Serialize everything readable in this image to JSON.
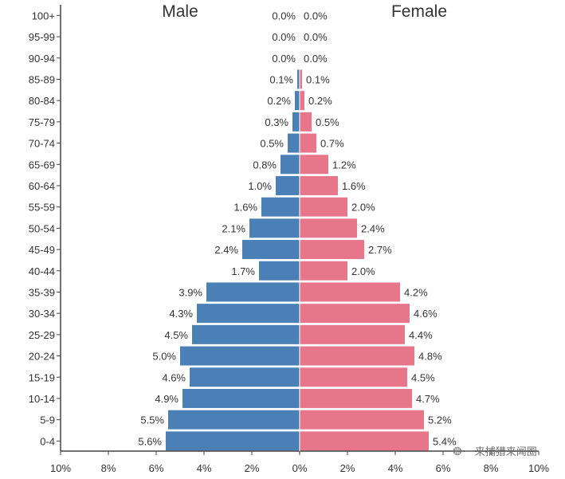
{
  "chart_data": {
    "type": "bar",
    "orientation": "horizontal-population-pyramid",
    "title_left": "Male",
    "title_right": "Female",
    "categories": [
      "0-4",
      "5-9",
      "10-14",
      "15-19",
      "20-24",
      "25-29",
      "30-34",
      "35-39",
      "40-44",
      "45-49",
      "50-54",
      "55-59",
      "60-64",
      "65-69",
      "70-74",
      "75-79",
      "80-84",
      "85-89",
      "90-94",
      "95-99",
      "100+"
    ],
    "series": [
      {
        "name": "Male",
        "color": "#4a80b6",
        "values": [
          5.6,
          5.5,
          4.9,
          4.6,
          5.0,
          4.5,
          4.3,
          3.9,
          1.7,
          2.4,
          2.1,
          1.6,
          1.0,
          0.8,
          0.5,
          0.3,
          0.2,
          0.1,
          0.0,
          0.0,
          0.0
        ],
        "labels": [
          "5.6%",
          "5.5%",
          "4.9%",
          "4.6%",
          "5.0%",
          "4.5%",
          "4.3%",
          "3.9%",
          "1.7%",
          "2.4%",
          "2.1%",
          "1.6%",
          "1.0%",
          "0.8%",
          "0.5%",
          "0.3%",
          "0.2%",
          "0.1%",
          "0.0%",
          "0.0%",
          "0.0%"
        ]
      },
      {
        "name": "Female",
        "color": "#e8768a",
        "values": [
          5.4,
          5.2,
          4.7,
          4.5,
          4.8,
          4.4,
          4.6,
          4.2,
          2.0,
          2.7,
          2.4,
          2.0,
          1.6,
          1.2,
          0.7,
          0.5,
          0.2,
          0.1,
          0.0,
          0.0,
          0.0
        ],
        "labels": [
          "5.4%",
          "5.2%",
          "4.7%",
          "4.5%",
          "4.8%",
          "4.4%",
          "4.6%",
          "4.2%",
          "2.0%",
          "2.7%",
          "2.4%",
          "2.0%",
          "1.6%",
          "1.2%",
          "0.7%",
          "0.5%",
          "0.2%",
          "0.1%",
          "0.0%",
          "0.0%",
          "0.0%"
        ]
      }
    ],
    "x_ticks_left": [
      "10%",
      "8%",
      "6%",
      "4%",
      "2%"
    ],
    "x_tick_center": "0%",
    "x_ticks_right": [
      "2%",
      "4%",
      "6%",
      "8%",
      "10%"
    ],
    "xlim": [
      -10,
      10
    ],
    "axis_color": "#444444"
  },
  "watermark": {
    "icon": "wechat-icon",
    "text": "一来捕猎来闻圈"
  }
}
